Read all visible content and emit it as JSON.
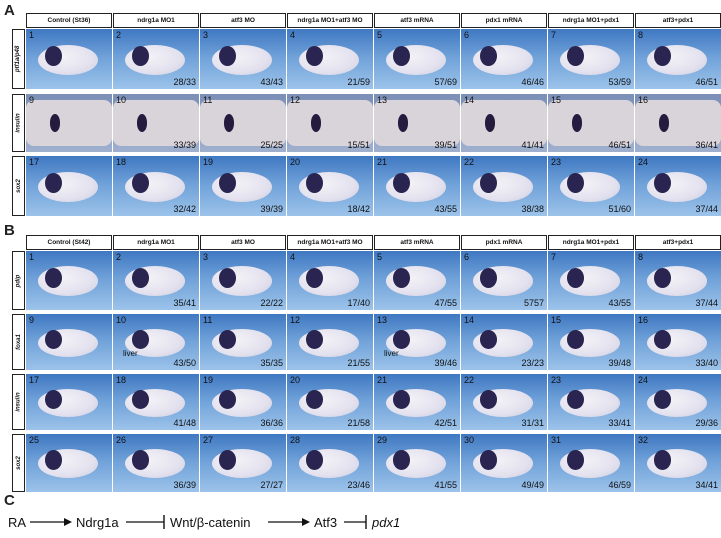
{
  "panels": {
    "A": {
      "letter": "A",
      "columns": [
        "Control (St36)",
        "ndrg1a MO1",
        "atf3 MO",
        "ndrg1a MO1+atf3 MO",
        "atf3 mRNA",
        "pdx1 mRNA",
        "ndrg1a MO1+pdx1",
        "atf3+pdx1"
      ],
      "rows": [
        {
          "label": "ptf1a/p48",
          "cells": [
            {
              "n": "1",
              "ratio": ""
            },
            {
              "n": "2",
              "ratio": "28/33"
            },
            {
              "n": "3",
              "ratio": "43/43"
            },
            {
              "n": "4",
              "ratio": "21/59"
            },
            {
              "n": "5",
              "ratio": "57/69"
            },
            {
              "n": "6",
              "ratio": "46/46"
            },
            {
              "n": "7",
              "ratio": "53/59"
            },
            {
              "n": "8",
              "ratio": "46/51"
            }
          ]
        },
        {
          "label": "insulin",
          "cells": [
            {
              "n": "9",
              "ratio": ""
            },
            {
              "n": "10",
              "ratio": "33/39"
            },
            {
              "n": "11",
              "ratio": "25/25"
            },
            {
              "n": "12",
              "ratio": "15/51"
            },
            {
              "n": "13",
              "ratio": "39/51"
            },
            {
              "n": "14",
              "ratio": "41/41"
            },
            {
              "n": "15",
              "ratio": "46/51"
            },
            {
              "n": "16",
              "ratio": "36/41"
            }
          ]
        },
        {
          "label": "sox2",
          "cells": [
            {
              "n": "17",
              "ratio": ""
            },
            {
              "n": "18",
              "ratio": "32/42"
            },
            {
              "n": "19",
              "ratio": "39/39"
            },
            {
              "n": "20",
              "ratio": "18/42"
            },
            {
              "n": "21",
              "ratio": "43/55"
            },
            {
              "n": "22",
              "ratio": "38/38"
            },
            {
              "n": "23",
              "ratio": "51/60"
            },
            {
              "n": "24",
              "ratio": "37/44"
            }
          ]
        }
      ]
    },
    "B": {
      "letter": "B",
      "columns": [
        "Control (St42)",
        "ndrg1a MO1",
        "atf3 MO",
        "ndrg1a MO1+atf3 MO",
        "atf3 mRNA",
        "pdx1 mRNA",
        "ndrg1a MO1+pdx1",
        "atf3+pdx1"
      ],
      "rows": [
        {
          "label": "pdip",
          "cells": [
            {
              "n": "1",
              "ratio": ""
            },
            {
              "n": "2",
              "ratio": "35/41"
            },
            {
              "n": "3",
              "ratio": "22/22"
            },
            {
              "n": "4",
              "ratio": "17/40"
            },
            {
              "n": "5",
              "ratio": "47/55"
            },
            {
              "n": "6",
              "ratio": "5757"
            },
            {
              "n": "7",
              "ratio": "43/55"
            },
            {
              "n": "8",
              "ratio": "37/44"
            }
          ]
        },
        {
          "label": "foxa1",
          "cells": [
            {
              "n": "9",
              "ratio": ""
            },
            {
              "n": "10",
              "ratio": "43/50",
              "anno": "liver"
            },
            {
              "n": "11",
              "ratio": "35/35"
            },
            {
              "n": "12",
              "ratio": "21/55"
            },
            {
              "n": "13",
              "ratio": "39/46",
              "anno": "liver"
            },
            {
              "n": "14",
              "ratio": "23/23"
            },
            {
              "n": "15",
              "ratio": "39/48"
            },
            {
              "n": "16",
              "ratio": "33/40"
            }
          ]
        },
        {
          "label": "insulin",
          "cells": [
            {
              "n": "17",
              "ratio": ""
            },
            {
              "n": "18",
              "ratio": "41/48"
            },
            {
              "n": "19",
              "ratio": "36/36"
            },
            {
              "n": "20",
              "ratio": "21/58"
            },
            {
              "n": "21",
              "ratio": "42/51"
            },
            {
              "n": "22",
              "ratio": "31/31"
            },
            {
              "n": "23",
              "ratio": "33/41"
            },
            {
              "n": "24",
              "ratio": "29/36"
            }
          ]
        },
        {
          "label": "sox2",
          "cells": [
            {
              "n": "25",
              "ratio": ""
            },
            {
              "n": "26",
              "ratio": "36/39"
            },
            {
              "n": "27",
              "ratio": "27/27"
            },
            {
              "n": "28",
              "ratio": "23/46"
            },
            {
              "n": "29",
              "ratio": "41/55"
            },
            {
              "n": "30",
              "ratio": "49/49"
            },
            {
              "n": "31",
              "ratio": "46/59"
            },
            {
              "n": "32",
              "ratio": "34/41"
            }
          ]
        }
      ]
    }
  },
  "panel_c": {
    "letter": "C",
    "nodes": [
      "RA",
      "Ndrg1a",
      "Wnt/β-catenin",
      "Atf3",
      "pdx1"
    ],
    "edges": [
      "activates",
      "inhibits",
      "activates",
      "inhibits"
    ]
  }
}
